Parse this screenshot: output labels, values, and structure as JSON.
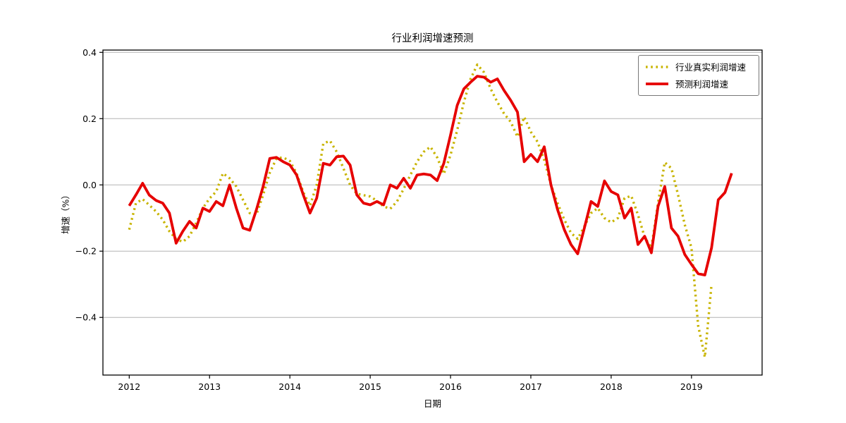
{
  "page": {
    "background": "#ffffff"
  },
  "chart_data": {
    "type": "line",
    "title": "行业利润增速预测",
    "xlabel": "日期",
    "ylabel": "增速（%）",
    "grid": "horizontal",
    "grid_color": "#b3b3b3",
    "legend_position": "top-right",
    "x_unit": "month",
    "x_start": "2012-01",
    "ylim": [
      -0.574,
      0.407
    ],
    "xlim_months": [
      -3.93,
      94.55
    ],
    "yticks": [
      {
        "value": 0.4,
        "label": "0.4"
      },
      {
        "value": 0.2,
        "label": "0.2"
      },
      {
        "value": 0.0,
        "label": "0.0"
      },
      {
        "value": -0.2,
        "label": "−0.2"
      },
      {
        "value": -0.4,
        "label": "−0.4"
      }
    ],
    "xticks": [
      {
        "month_index": 0,
        "label": "2012"
      },
      {
        "month_index": 12,
        "label": "2013"
      },
      {
        "month_index": 24,
        "label": "2014"
      },
      {
        "month_index": 36,
        "label": "2015"
      },
      {
        "month_index": 48,
        "label": "2016"
      },
      {
        "month_index": 60,
        "label": "2017"
      },
      {
        "month_index": 72,
        "label": "2018"
      },
      {
        "month_index": 84,
        "label": "2019"
      }
    ],
    "series": [
      {
        "name": "行业真实利润增速",
        "style": "dotted",
        "color": "#c8b400",
        "x_start": "2012-01",
        "x_end": "2019-04",
        "values": [
          -0.135,
          -0.055,
          -0.043,
          -0.061,
          -0.08,
          -0.105,
          -0.14,
          -0.163,
          -0.172,
          -0.155,
          -0.115,
          -0.07,
          -0.041,
          -0.02,
          0.035,
          0.02,
          -0.005,
          -0.045,
          -0.085,
          -0.09,
          -0.03,
          0.037,
          0.08,
          0.083,
          0.072,
          0.035,
          -0.022,
          -0.063,
          0.0,
          0.125,
          0.133,
          0.1,
          0.05,
          0.0,
          -0.027,
          -0.031,
          -0.035,
          -0.048,
          -0.065,
          -0.072,
          -0.05,
          -0.012,
          0.03,
          0.07,
          0.1,
          0.115,
          0.083,
          0.033,
          0.09,
          0.165,
          0.25,
          0.32,
          0.363,
          0.34,
          0.29,
          0.25,
          0.215,
          0.19,
          0.145,
          0.205,
          0.16,
          0.13,
          0.075,
          0.0,
          -0.055,
          -0.105,
          -0.145,
          -0.163,
          -0.125,
          -0.085,
          -0.07,
          -0.1,
          -0.113,
          -0.1,
          -0.04,
          -0.033,
          -0.09,
          -0.158,
          -0.19,
          -0.055,
          0.068,
          0.05,
          -0.03,
          -0.12,
          -0.19,
          -0.425,
          -0.52,
          -0.3
        ]
      },
      {
        "name": "预测利润增速",
        "style": "solid",
        "color": "#e60000",
        "x_start": "2012-01",
        "x_end": "2019-07",
        "values": [
          -0.063,
          -0.03,
          0.005,
          -0.031,
          -0.047,
          -0.055,
          -0.085,
          -0.176,
          -0.14,
          -0.11,
          -0.13,
          -0.07,
          -0.08,
          -0.05,
          -0.063,
          0.0,
          -0.07,
          -0.13,
          -0.137,
          -0.075,
          -0.005,
          0.08,
          0.083,
          0.07,
          0.06,
          0.03,
          -0.03,
          -0.085,
          -0.04,
          0.065,
          0.06,
          0.085,
          0.087,
          0.06,
          -0.03,
          -0.055,
          -0.06,
          -0.05,
          -0.06,
          0.0,
          -0.01,
          0.02,
          -0.01,
          0.03,
          0.033,
          0.03,
          0.013,
          0.065,
          0.15,
          0.24,
          0.29,
          0.31,
          0.328,
          0.325,
          0.31,
          0.32,
          0.285,
          0.255,
          0.22,
          0.07,
          0.092,
          0.07,
          0.115,
          0.0,
          -0.075,
          -0.135,
          -0.18,
          -0.208,
          -0.13,
          -0.05,
          -0.065,
          0.012,
          -0.02,
          -0.03,
          -0.1,
          -0.07,
          -0.18,
          -0.155,
          -0.205,
          -0.065,
          -0.005,
          -0.13,
          -0.155,
          -0.21,
          -0.24,
          -0.268,
          -0.272,
          -0.19,
          -0.045,
          -0.023,
          0.035
        ]
      }
    ]
  }
}
